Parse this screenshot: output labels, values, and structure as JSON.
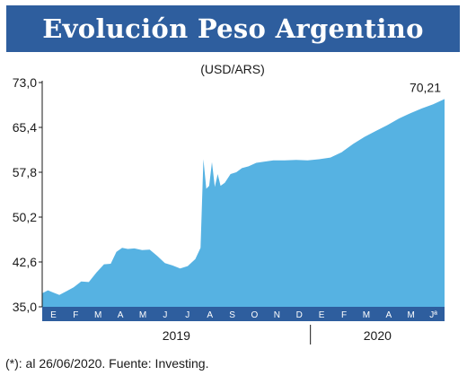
{
  "header": {
    "title": "Evolución Peso Argentino"
  },
  "footnote": "(*): al 26/06/2020. Fuente: Investing.",
  "colors": {
    "header_bg": "#2e5e9e",
    "area_fill": "#56b2e2",
    "axis_band": "#2e5e9e",
    "ink": "#1a1a1a"
  },
  "chart_data": {
    "type": "area",
    "subtitle": "(USD/ARS)",
    "ylim": [
      35.0,
      73.0
    ],
    "yticks": [
      "73,0",
      "65,4",
      "57,8",
      "50,2",
      "42,6",
      "35,0"
    ],
    "grid": false,
    "months": [
      "E",
      "F",
      "M",
      "A",
      "M",
      "J",
      "J",
      "A",
      "S",
      "O",
      "N",
      "D",
      "E",
      "F",
      "M",
      "A",
      "M",
      "Jª"
    ],
    "years": [
      "2019",
      "2020"
    ],
    "last_value_label": "70,21",
    "series": [
      {
        "x": [
          "2019-01",
          "2019-01",
          "2019-01",
          "2019-01",
          "2019-02",
          "2019-02",
          "2019-02",
          "2019-03",
          "2019-03",
          "2019-03",
          "2019-04",
          "2019-04",
          "2019-04",
          "2019-04",
          "2019-05",
          "2019-05",
          "2019-05",
          "2019-06",
          "2019-06",
          "2019-06",
          "2019-07",
          "2019-07",
          "2019-07",
          "2019-08",
          "2019-08",
          "2019-08",
          "2019-08",
          "2019-08",
          "2019-08",
          "2019-08",
          "2019-08",
          "2019-09",
          "2019-09",
          "2019-09",
          "2019-09",
          "2019-10",
          "2019-10",
          "2019-10",
          "2019-11",
          "2019-11",
          "2019-12",
          "2019-12",
          "2020-01",
          "2020-01",
          "2020-02",
          "2020-02",
          "2020-03",
          "2020-03",
          "2020-04",
          "2020-04",
          "2020-05",
          "2020-05",
          "2020-06",
          "2020-06"
        ],
        "values": [
          37.3,
          37.8,
          37.4,
          37.0,
          37.6,
          38.3,
          39.3,
          39.2,
          40.8,
          42.2,
          42.3,
          44.3,
          45.0,
          44.8,
          44.9,
          44.6,
          44.7,
          43.6,
          42.4,
          42.0,
          41.5,
          41.9,
          43.1,
          45.0,
          60.0,
          55.0,
          55.5,
          59.5,
          55.3,
          57.5,
          55.5,
          56.0,
          57.5,
          57.8,
          58.5,
          58.8,
          59.4,
          59.6,
          59.8,
          59.8,
          59.9,
          59.8,
          60.0,
          60.3,
          61.2,
          62.6,
          63.8,
          64.8,
          65.8,
          66.9,
          67.8,
          68.6,
          69.3,
          70.21
        ]
      }
    ]
  }
}
